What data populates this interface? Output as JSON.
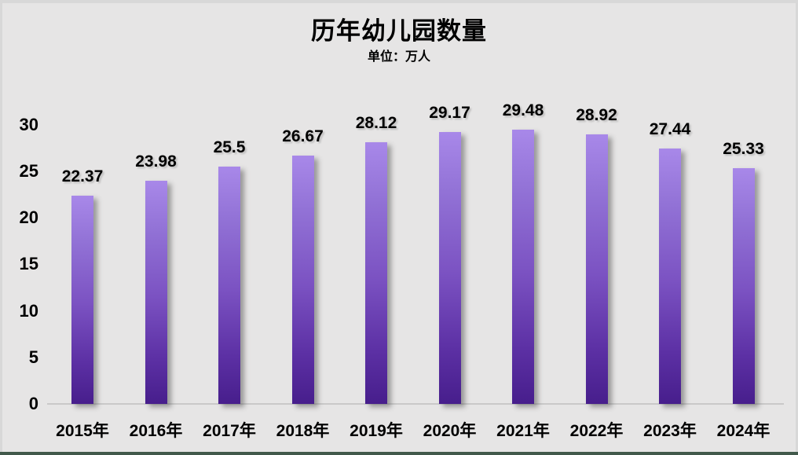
{
  "chart_data": {
    "type": "bar",
    "title": "历年幼儿园数量",
    "subtitle": "单位：万人",
    "categories": [
      "2015年",
      "2016年",
      "2017年",
      "2018年",
      "2019年",
      "2020年",
      "2021年",
      "2022年",
      "2023年",
      "2024年"
    ],
    "values": [
      22.37,
      23.98,
      25.5,
      26.67,
      28.12,
      29.17,
      29.48,
      28.92,
      27.44,
      25.33
    ],
    "value_labels": [
      "22.37",
      "23.98",
      "25.5",
      "26.67",
      "28.12",
      "29.17",
      "29.48",
      "28.92",
      "27.44",
      "25.33"
    ],
    "y_ticks": [
      0,
      5,
      10,
      15,
      20,
      25,
      30
    ],
    "ylim": [
      0,
      30
    ],
    "xlabel": "",
    "ylabel": "",
    "grid": false,
    "legend": false,
    "data_labels_position": "above-bars",
    "colors": {
      "bar_gradient_top": "#a888e9",
      "bar_gradient_bottom": "#471e8c",
      "text": "#000000",
      "background": "#e6e5e5",
      "outer_edge": "#d8d8d8",
      "axis_line": "#c9c9c9",
      "bottom_strip": "#41594b"
    }
  }
}
